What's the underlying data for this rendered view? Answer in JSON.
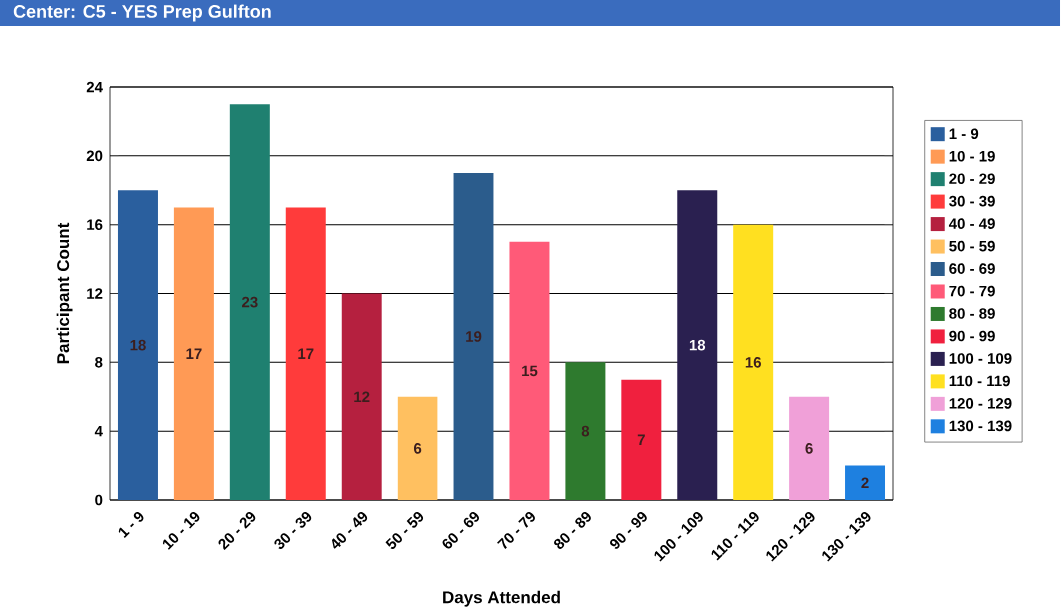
{
  "chart_data": {
    "type": "bar",
    "title": "Center: C5 - YES Prep Gulfton",
    "xlabel": "Days Attended",
    "ylabel": "Participant Count",
    "categories": [
      "1 - 9",
      "10 - 19",
      "20 - 29",
      "30 - 39",
      "40 - 49",
      "50 - 59",
      "60 - 69",
      "70 - 79",
      "80 - 89",
      "90 - 99",
      "100 - 109",
      "110 - 119",
      "120 - 129",
      "130 - 139"
    ],
    "series": [
      {
        "name": "1 - 9",
        "color": "#2a5f9e",
        "values": [
          18,
          null,
          null,
          null,
          null,
          null,
          null,
          null,
          null,
          null,
          null,
          null,
          null,
          null
        ]
      },
      {
        "name": "10 - 19",
        "color": "#ff9a55",
        "values": [
          null,
          17,
          null,
          null,
          null,
          null,
          null,
          null,
          null,
          null,
          null,
          null,
          null,
          null
        ]
      },
      {
        "name": "20 - 29",
        "color": "#1f8070",
        "values": [
          null,
          null,
          23,
          null,
          null,
          null,
          null,
          null,
          null,
          null,
          null,
          null,
          null,
          null
        ]
      },
      {
        "name": "30 - 39",
        "color": "#ff3b3b",
        "values": [
          null,
          null,
          null,
          17,
          null,
          null,
          null,
          null,
          null,
          null,
          null,
          null,
          null,
          null
        ]
      },
      {
        "name": "40 - 49",
        "color": "#b5203f",
        "values": [
          null,
          null,
          null,
          null,
          12,
          null,
          null,
          null,
          null,
          null,
          null,
          null,
          null,
          null
        ]
      },
      {
        "name": "50 - 59",
        "color": "#ffc060",
        "values": [
          null,
          null,
          null,
          null,
          null,
          6,
          null,
          null,
          null,
          null,
          null,
          null,
          null,
          null
        ]
      },
      {
        "name": "60 - 69",
        "color": "#2b5c8c",
        "values": [
          null,
          null,
          null,
          null,
          null,
          null,
          19,
          null,
          null,
          null,
          null,
          null,
          null,
          null
        ]
      },
      {
        "name": "70 - 79",
        "color": "#ff5a78",
        "values": [
          null,
          null,
          null,
          null,
          null,
          null,
          null,
          15,
          null,
          null,
          null,
          null,
          null,
          null
        ]
      },
      {
        "name": "80 - 89",
        "color": "#2e7a2e",
        "values": [
          null,
          null,
          null,
          null,
          null,
          null,
          null,
          null,
          8,
          null,
          null,
          null,
          null,
          null
        ]
      },
      {
        "name": "90 - 99",
        "color": "#f0203e",
        "values": [
          null,
          null,
          null,
          null,
          null,
          null,
          null,
          null,
          null,
          7,
          null,
          null,
          null,
          null
        ]
      },
      {
        "name": "100 - 109",
        "color": "#2a2050",
        "values": [
          null,
          null,
          null,
          null,
          null,
          null,
          null,
          null,
          null,
          null,
          18,
          null,
          null,
          null
        ]
      },
      {
        "name": "110 - 119",
        "color": "#ffe020",
        "values": [
          null,
          null,
          null,
          null,
          null,
          null,
          null,
          null,
          null,
          null,
          null,
          16,
          null,
          null
        ]
      },
      {
        "name": "120 - 129",
        "color": "#f0a0d8",
        "values": [
          null,
          null,
          null,
          null,
          null,
          null,
          null,
          null,
          null,
          null,
          null,
          null,
          6,
          null
        ]
      },
      {
        "name": "130 - 139",
        "color": "#1e80e0",
        "values": [
          null,
          null,
          null,
          null,
          null,
          null,
          null,
          null,
          null,
          null,
          null,
          null,
          null,
          2
        ]
      }
    ],
    "ylim": [
      0,
      24
    ],
    "yticks": [
      0,
      4,
      8,
      12,
      16,
      20,
      24
    ],
    "grid": "y",
    "legend": "right",
    "data_labels": true
  }
}
